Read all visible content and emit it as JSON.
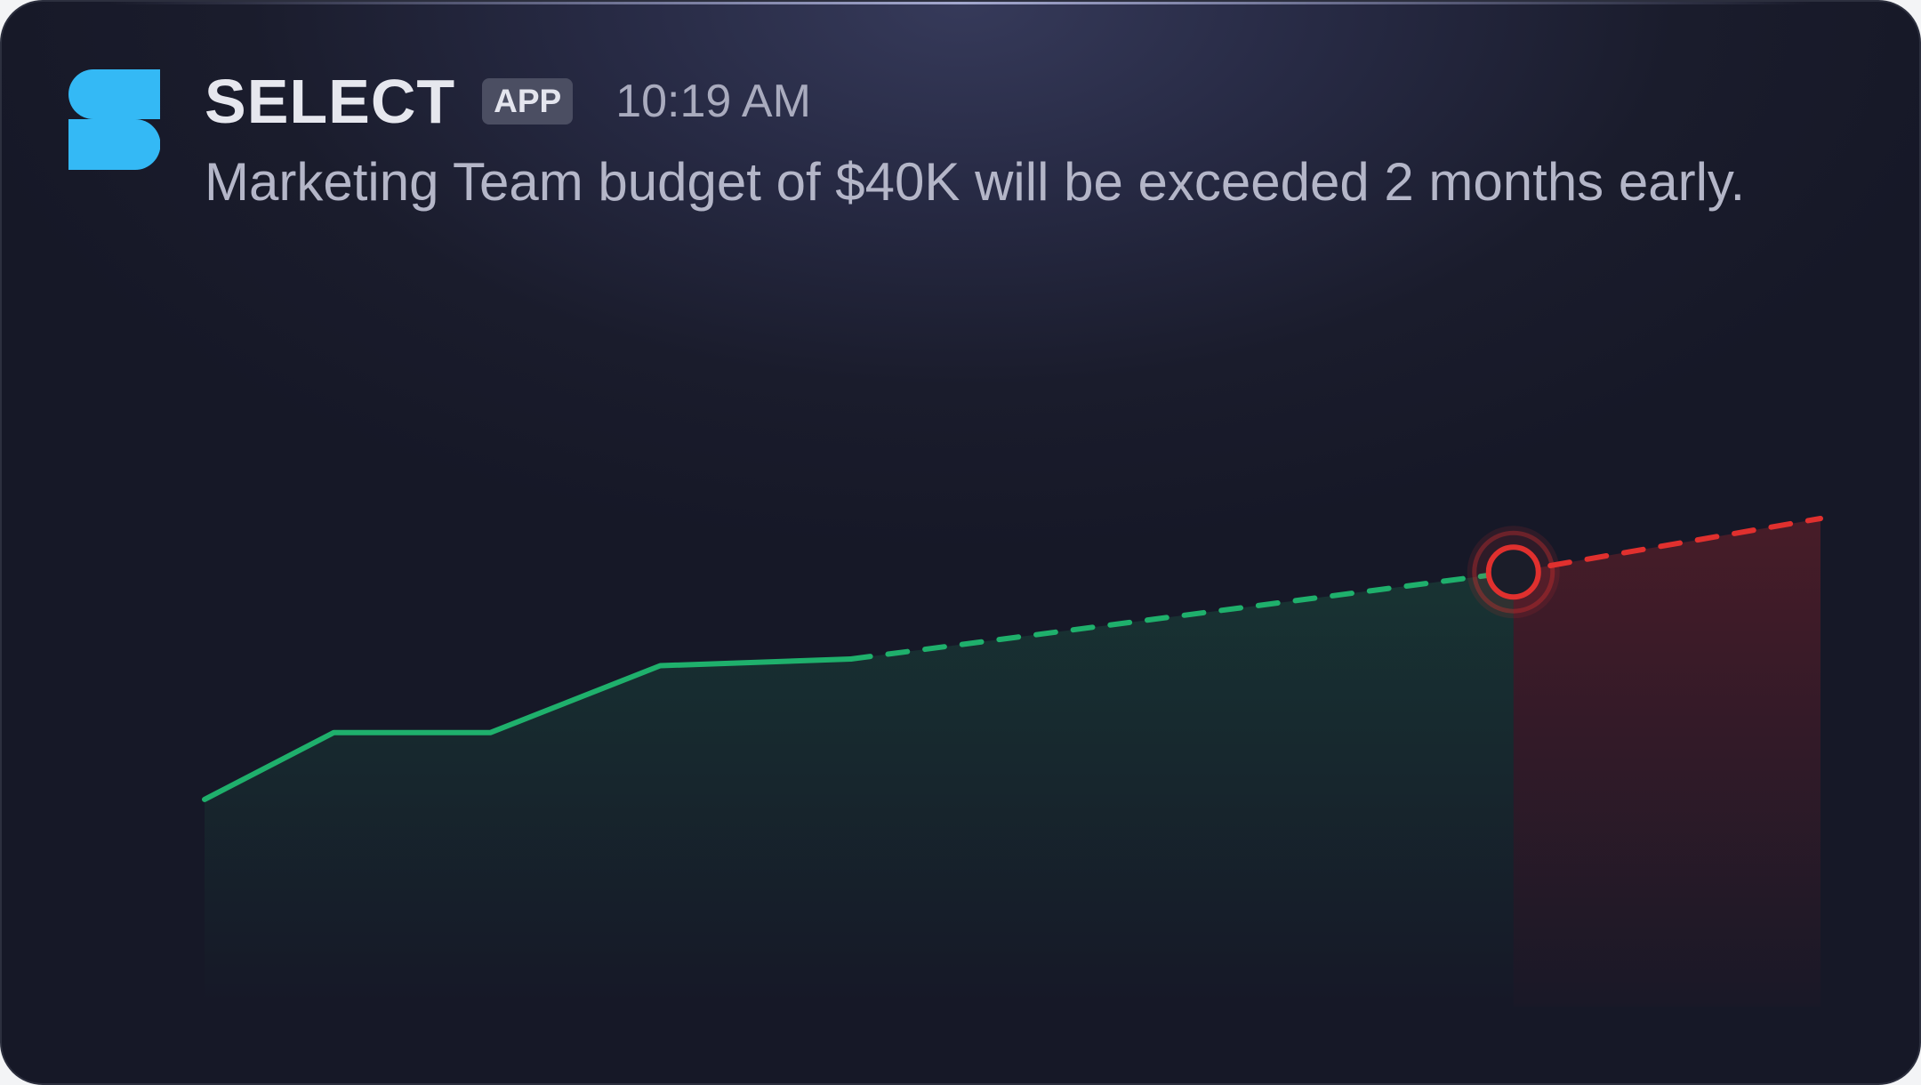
{
  "app": {
    "name": "SELECT",
    "badge": "APP",
    "timestamp": "10:19 AM",
    "logo": "select-logo-icon"
  },
  "message": {
    "text": "Marketing Team budget of $40K will be exceeded 2 months early."
  },
  "colors": {
    "actual_line": "#1fb06c",
    "overrun_line": "#e0302e",
    "budget_line": "#e8e9f2",
    "logo": "#34b9f5"
  },
  "chart_data": {
    "type": "line",
    "budget_level": 0.65,
    "actual": [
      [
        0.0,
        0.31
      ],
      [
        0.08,
        0.41
      ],
      [
        0.177,
        0.41
      ],
      [
        0.282,
        0.51
      ],
      [
        0.4,
        0.52
      ]
    ],
    "forecast": [
      [
        0.4,
        0.52
      ],
      [
        0.81,
        0.65
      ]
    ],
    "overrun": [
      [
        0.81,
        0.65
      ],
      [
        1.0,
        0.73
      ]
    ],
    "marker": {
      "x": 0.81,
      "y": 0.65
    }
  }
}
